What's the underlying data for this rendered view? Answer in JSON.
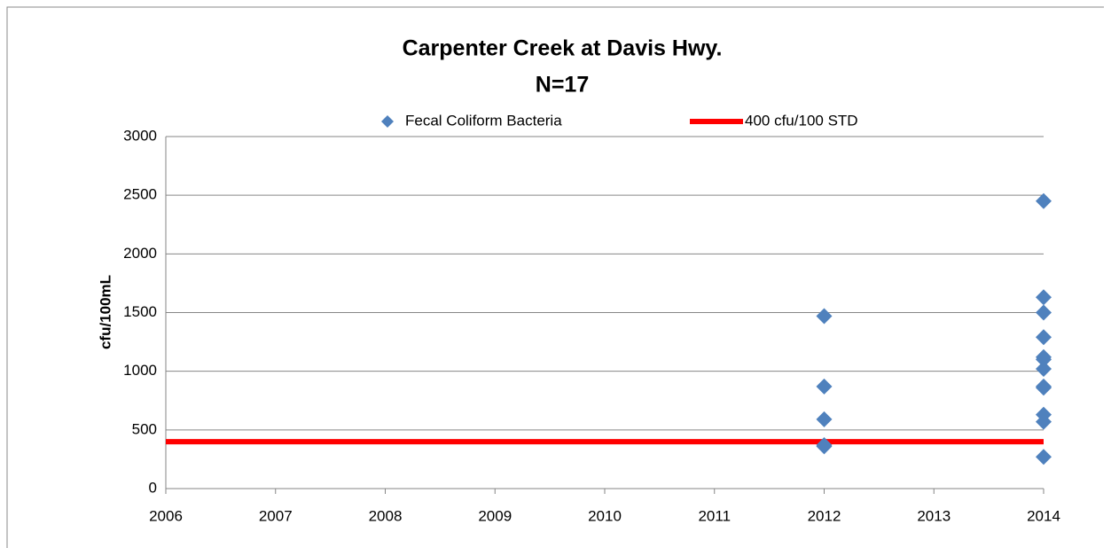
{
  "chart_data": {
    "type": "scatter",
    "title": "Carpenter Creek at Davis Hwy.",
    "subtitle": "N=17",
    "ylabel": "cfu/100mL",
    "xlim": [
      2006,
      2014
    ],
    "xticks": [
      2006,
      2007,
      2008,
      2009,
      2010,
      2011,
      2012,
      2013,
      2014
    ],
    "ylim": [
      0,
      3000
    ],
    "yticks": [
      0,
      500,
      1000,
      1500,
      2000,
      2500,
      3000
    ],
    "grid": true,
    "legend": "top",
    "series": [
      {
        "name": "Fecal Coliform Bacteria",
        "color": "#4f81bd",
        "type": "scatter",
        "x": [
          2012,
          2012,
          2012,
          2012,
          2012,
          2014,
          2014,
          2014,
          2014,
          2014,
          2014,
          2014,
          2014,
          2014,
          2014,
          2014,
          2014
        ],
        "values": [
          1470,
          870,
          590,
          370,
          360,
          2450,
          1630,
          1500,
          1290,
          1120,
          1100,
          1020,
          870,
          860,
          630,
          570,
          270
        ]
      },
      {
        "name": "400 cfu/100 STD",
        "color": "#ff0000",
        "type": "line",
        "x": [
          2006,
          2014
        ],
        "values": [
          400,
          400
        ]
      }
    ]
  }
}
